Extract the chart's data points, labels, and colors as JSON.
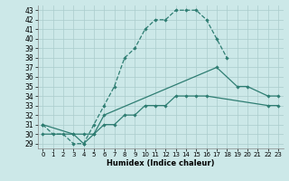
{
  "title": "",
  "xlabel": "Humidex (Indice chaleur)",
  "background_color": "#cce8e8",
  "grid_color": "#aacccc",
  "line_color": "#2e7d72",
  "xlim": [
    -0.5,
    23.5
  ],
  "ylim": [
    28.5,
    43.5
  ],
  "xticks": [
    0,
    1,
    2,
    3,
    4,
    5,
    6,
    7,
    8,
    9,
    10,
    11,
    12,
    13,
    14,
    15,
    16,
    17,
    18,
    19,
    20,
    21,
    22,
    23
  ],
  "yticks": [
    29,
    30,
    31,
    32,
    33,
    34,
    35,
    36,
    37,
    38,
    39,
    40,
    41,
    42,
    43
  ],
  "line1_x": [
    0,
    1,
    2,
    3,
    4,
    5,
    6,
    7,
    8,
    9,
    10,
    11,
    12,
    13,
    14,
    15,
    16,
    17,
    18
  ],
  "line1_y": [
    31,
    30,
    30,
    29,
    29,
    31,
    33,
    35,
    38,
    39,
    41,
    42,
    42,
    43,
    43,
    43,
    42,
    40,
    38
  ],
  "line2_x": [
    0,
    3,
    4,
    5,
    6,
    17,
    19,
    20,
    22,
    23
  ],
  "line2_y": [
    31,
    30,
    29,
    30,
    32,
    37,
    35,
    35,
    34,
    34
  ],
  "line3_x": [
    0,
    3,
    4,
    5,
    6,
    7,
    8,
    9,
    10,
    11,
    12,
    13,
    14,
    15,
    16,
    22,
    23
  ],
  "line3_y": [
    30,
    30,
    30,
    30,
    31,
    31,
    32,
    32,
    33,
    33,
    33,
    34,
    34,
    34,
    34,
    33,
    33
  ]
}
